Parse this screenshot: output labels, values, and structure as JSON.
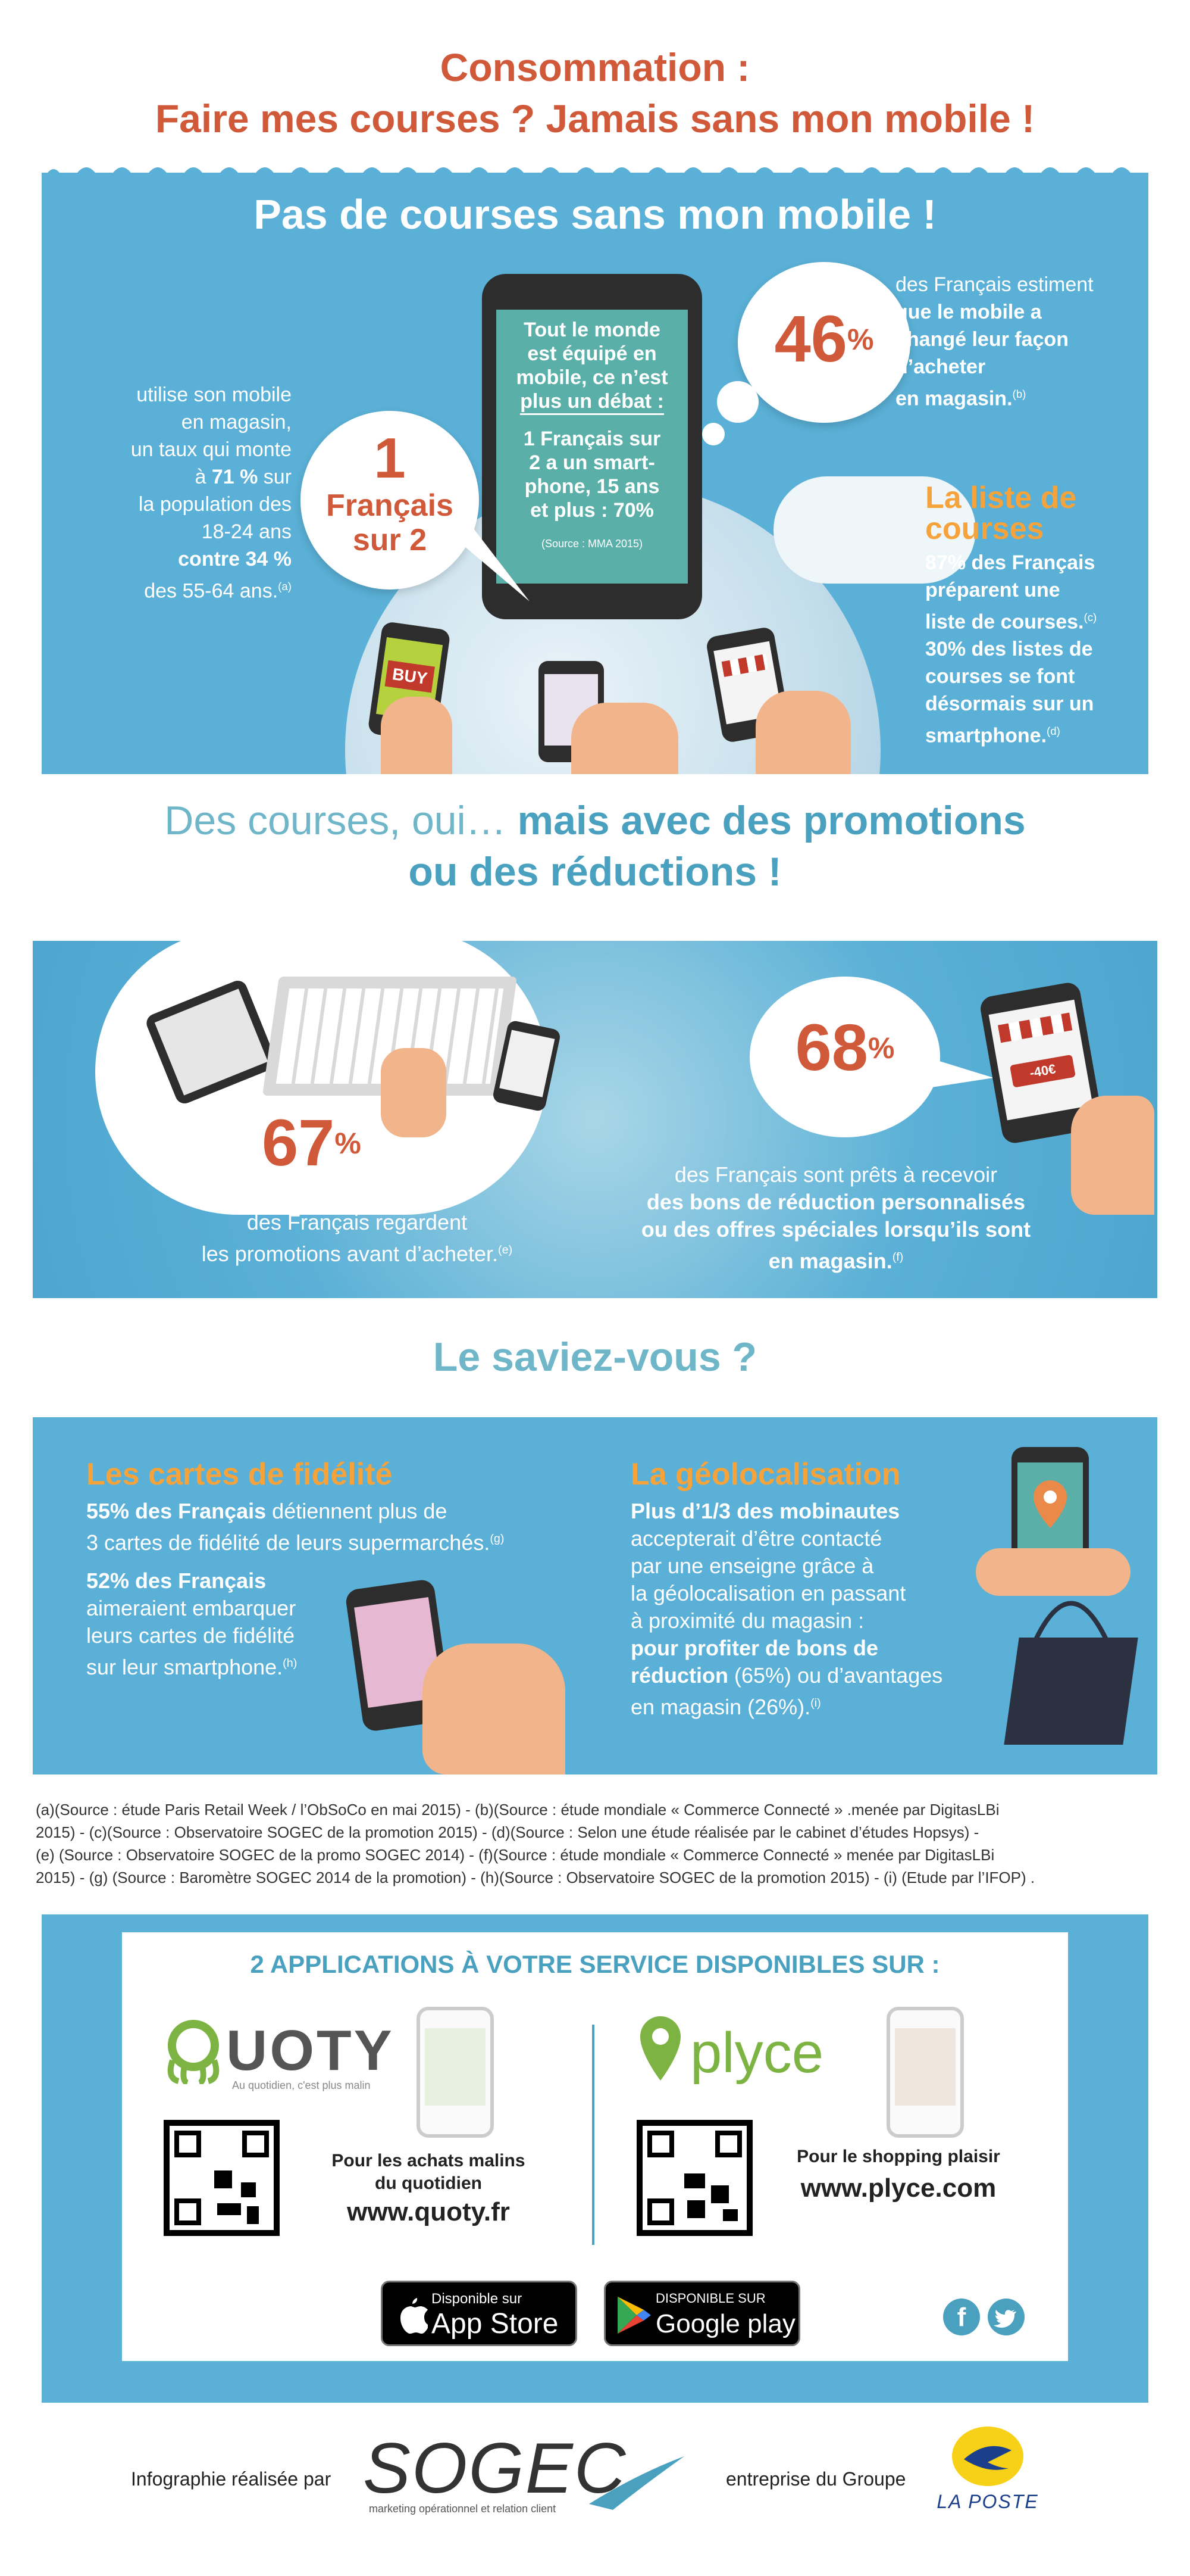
{
  "header": {
    "line1": "Consommation :",
    "line2": "Faire mes courses ? Jamais sans mon mobile !"
  },
  "section1": {
    "title": "Pas de courses sans mon mobile !",
    "phone_text": {
      "line1": "Tout le monde",
      "line2": "est équipé en",
      "line3": "mobile, ce n’est",
      "line4": "plus un débat :",
      "line5": "1 Français sur",
      "line6": "2 a un smart-",
      "line7": "phone, 15 ans",
      "line8": "et plus : 70%",
      "source": "(Source : MMA 2015)"
    },
    "left_bubble": {
      "number": "1",
      "line1": "Français",
      "line2": "sur 2"
    },
    "left_text": {
      "l1": "utilise son mobile",
      "l2": "en magasin,",
      "l3": "un taux qui monte",
      "l4a": "à ",
      "l4b": "71 %",
      "l4c": " sur",
      "l5": "la population des",
      "l6": "18-24 ans",
      "l7": "contre 34 %",
      "l8": "des 55-64 ans.",
      "sup": "(a)"
    },
    "right_bubble": {
      "number": "46",
      "pct": "%"
    },
    "right_text": {
      "l1": "des Français estiment",
      "l2": "que le mobile a",
      "l3": "changé leur façon",
      "l4": "d’acheter",
      "l5": "en magasin.",
      "sup": "(b)"
    },
    "list": {
      "title1": "La liste de",
      "title2": "courses",
      "l1": "87% des Français",
      "l2": "préparent une",
      "l3": "liste de courses.",
      "sup1": "(c)",
      "l4": "30% des listes de",
      "l5": "courses se font",
      "l6": "désormais sur un",
      "l7": "smartphone.",
      "sup2": "(d)"
    },
    "buy_label": "BUY"
  },
  "section2": {
    "title_light": "Des courses, oui… ",
    "title_bold": "mais avec des promotions",
    "title_line2": "ou des réductions !",
    "left_number": "67",
    "left_pct": "%",
    "left_text1": "des Français regardent",
    "left_text2": "les promotions avant d’acheter.",
    "left_sup": "(e)",
    "right_number": "68",
    "right_pct": "%",
    "right_text1": "des Français sont prêts à recevoir",
    "right_text2": "des bons de réduction personnalisés",
    "right_text3": "ou des offres spéciales lorsqu’ils sont",
    "right_text4": "en magasin.",
    "right_sup": "(f)",
    "coupon": "-40€"
  },
  "section3": {
    "title": "Le saviez-vous ?",
    "left": {
      "title": "Les cartes de fidélité",
      "p1_bold": "55% des Français",
      "p1_rest": " détiennent plus de",
      "p1_l2": "3 cartes de fidélité de leurs supermarchés.",
      "p1_sup": "(g)",
      "p2_l1": "52% des Français",
      "p2_l2": "aimeraient embarquer",
      "p2_l3": "leurs cartes de fidélité",
      "p2_l4": "sur leur smartphone.",
      "p2_sup": "(h)"
    },
    "right": {
      "title": "La géolocalisation",
      "l1": "Plus d’1/3 des mobinautes",
      "l2": "accepterait d’être contacté",
      "l3": "par une enseigne grâce à",
      "l4": "la géolocalisation en passant",
      "l5": "à proximité du magasin :",
      "l6": "pour profiter de bons de",
      "l7a": "réduction",
      "l7b": " (65%) ou d’avantages",
      "l8": "en magasin (26%).",
      "sup": "(i)"
    }
  },
  "sources": {
    "line1": "(a)(Source : étude Paris Retail Week / l’ObSoCo en mai 2015) - (b)(Source : étude mondiale « Commerce Connecté » .menée par DigitasLBi",
    "line2": "2015) - (c)(Source : Observatoire SOGEC de la promotion 2015) - (d)(Source : Selon une étude réalisée par le cabinet d’études Hopsys) -",
    "line3": "(e) (Source : Observatoire SOGEC de la promo SOGEC 2014) - (f)(Source : étude mondiale « Commerce Connecté » menée par DigitasLBi",
    "line4": "2015) - (g) (Source : Baromètre SOGEC 2014 de la promotion) - (h)(Source : Observatoire SOGEC de la promotion 2015) - (i) (Etude par l’IFOP) ."
  },
  "apps": {
    "title": "2 APPLICATIONS À VOTRE SERVICE DISPONIBLES SUR :",
    "quoty": {
      "name": "UOTY",
      "tagline": "Au quotidien, c'est plus malin",
      "desc1": "Pour les achats malins",
      "desc2": "du quotidien",
      "url": "www.quoty.fr"
    },
    "plyce": {
      "name": "plyce",
      "desc1": "Pour le shopping plaisir",
      "url": "www.plyce.com"
    },
    "appstore_small": "Disponible sur",
    "appstore_big": "App Store",
    "google_small": "DISPONIBLE SUR",
    "google_big": "Google play"
  },
  "footer": {
    "left": "Infographie réalisée par",
    "brand": "SOGEC",
    "brand_tag": "marketing opérationnel et relation client",
    "right": "entreprise du Groupe",
    "laposte": "LA POSTE"
  },
  "colors": {
    "blue": "#5ab0d6",
    "orange": "#d0593a",
    "yellow": "#f5a33a",
    "teal": "#6fb6c9"
  }
}
